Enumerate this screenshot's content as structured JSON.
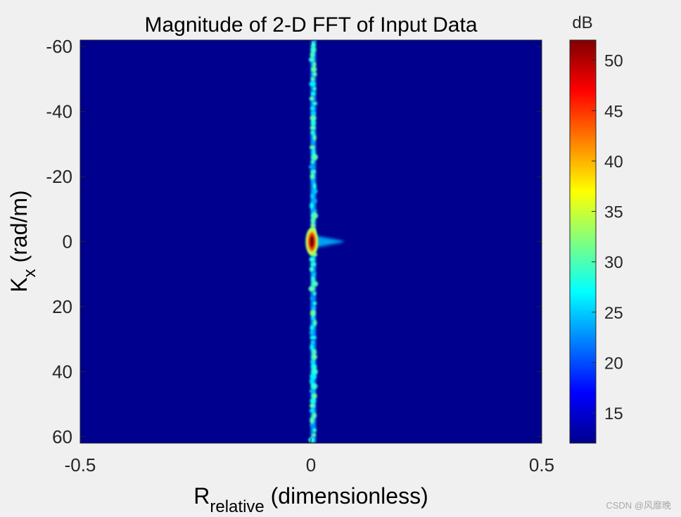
{
  "chart_data": {
    "type": "heatmap",
    "title": "Magnitude of 2-D FFT of Input Data",
    "xlabel": {
      "main": "R",
      "subscript": "relative",
      "rest": " (dimensionless)"
    },
    "ylabel": {
      "main": "K",
      "subscript": "x",
      "rest": " (rad/m)"
    },
    "xlim": [
      -0.5,
      0.5
    ],
    "ylim": [
      -62,
      62
    ],
    "y_direction": "reverse",
    "xticks": [
      -0.5,
      0,
      0.5
    ],
    "xtick_labels": [
      "-0.5",
      "0",
      "0.5"
    ],
    "yticks": [
      -60,
      -40,
      -20,
      0,
      20,
      40,
      60
    ],
    "ytick_labels": [
      "-60",
      "-40",
      "-20",
      "0",
      "20",
      "40",
      "60"
    ],
    "colormap": "jet",
    "colorbar": {
      "label": "dB",
      "range": [
        12,
        52
      ],
      "ticks": [
        15,
        20,
        25,
        30,
        35,
        40,
        45,
        50
      ],
      "tick_labels": [
        "15",
        "20",
        "25",
        "30",
        "35",
        "40",
        "45",
        "50"
      ]
    },
    "features": [
      {
        "name": "vertical-ridge",
        "x": 0.005,
        "y_range": [
          -62,
          62
        ],
        "level_db": 27
      },
      {
        "name": "peak",
        "x": 0.002,
        "y": 0,
        "level_db": 52
      },
      {
        "name": "side-lobe",
        "x_range": [
          0.005,
          0.07
        ],
        "y": 0,
        "level_db": 24
      }
    ]
  },
  "watermark": "CSDN @风靡晚"
}
